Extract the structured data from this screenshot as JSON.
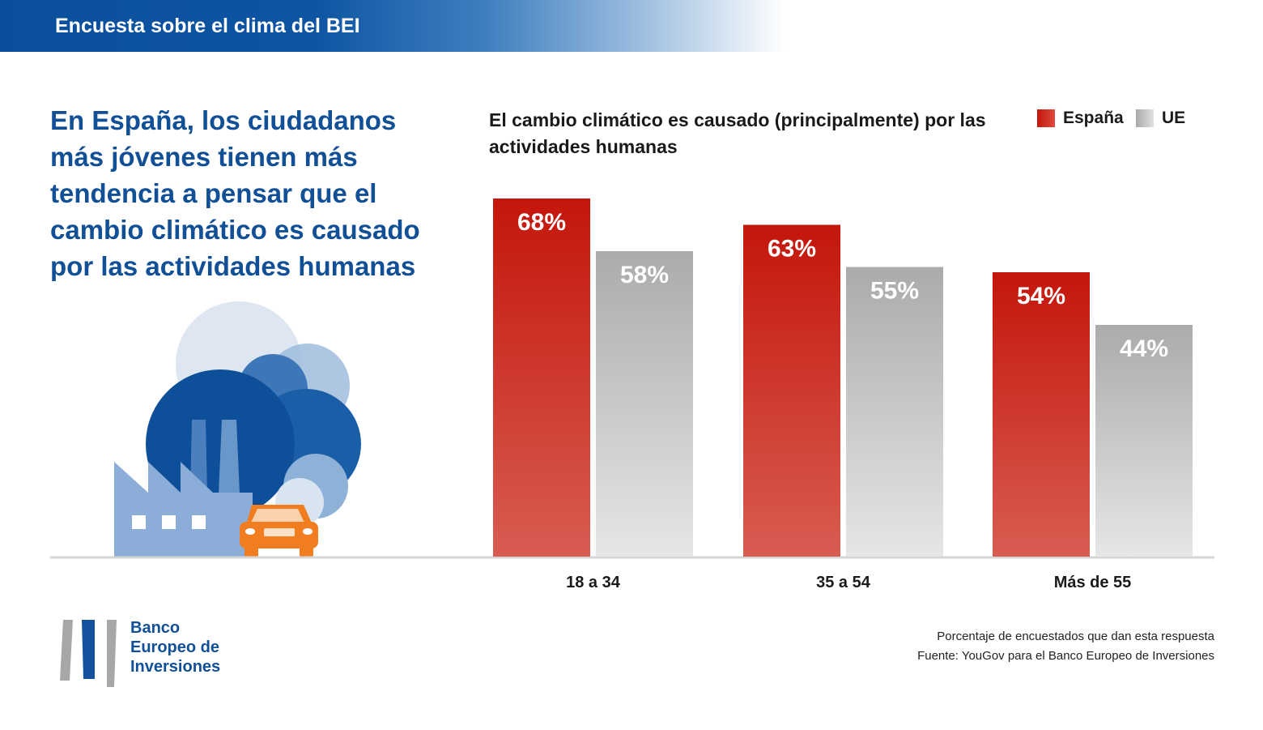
{
  "header": {
    "title": "Encuesta sobre el clima del BEI"
  },
  "headline": "En España, los ciudadanos más jóvenes tienen más tendencia a pensar que el cambio climático es causado por las actividades humanas",
  "colors": {
    "spain": "#c4160c",
    "eu": "#b3b3b3",
    "brand_blue": "#114f96"
  },
  "legend": {
    "spain": "España",
    "eu": "UE"
  },
  "chart_data": {
    "type": "bar",
    "title": "El cambio climático es causado (principalmente) por las actividades humanas",
    "categories": [
      "18 a 34",
      "35 a 54",
      "Más de 55"
    ],
    "series": [
      {
        "name": "España",
        "values": [
          68,
          63,
          54
        ]
      },
      {
        "name": "UE",
        "values": [
          58,
          55,
          44
        ]
      }
    ],
    "labels": {
      "España": [
        "68%",
        "63%",
        "54%"
      ],
      "UE": [
        "58%",
        "55%",
        "44%"
      ]
    },
    "xlabel": "",
    "ylabel": "",
    "ylim": [
      0,
      100
    ],
    "grid": false,
    "legend_position": "top-right"
  },
  "footnote": {
    "line1": "Porcentaje de encuestados que dan esta respuesta",
    "line2": "Fuente: YouGov para el Banco Europeo de Inversiones"
  },
  "logo": {
    "line1": "Banco",
    "line2": "Europeo de",
    "line3": "Inversiones"
  },
  "illustration": {
    "icons": [
      "factory-icon",
      "smoke-clouds",
      "car-icon"
    ]
  }
}
